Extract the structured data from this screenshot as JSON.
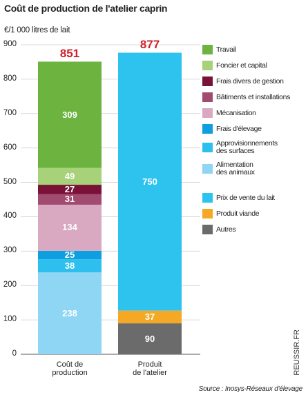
{
  "chart_data": {
    "type": "stacked-bar",
    "title": "Coût de production de l'atelier caprin",
    "subtitle": "€/1 000 litres de lait",
    "categories": [
      "Coût de\nproduction",
      "Produit\nde l'atelier"
    ],
    "series": [
      {
        "name": "Alimentation\ndes animaux",
        "color": "#8fd5f4",
        "values": [
          238,
          null
        ]
      },
      {
        "name": "Approvisionnements\ndes surfaces",
        "color": "#2dc0ee",
        "values": [
          38,
          null
        ]
      },
      {
        "name": "Frais d'élevage",
        "color": "#0d9fdf",
        "values": [
          25,
          null
        ]
      },
      {
        "name": "Mécanisation",
        "color": "#d9a8c1",
        "values": [
          134,
          null
        ]
      },
      {
        "name": "Bâtiments et installations",
        "color": "#a24b70",
        "values": [
          31,
          null
        ]
      },
      {
        "name": "Frais divers de gestion",
        "color": "#7a1238",
        "values": [
          27,
          null
        ]
      },
      {
        "name": "Foncier et capital",
        "color": "#a7d27a",
        "values": [
          49,
          null
        ]
      },
      {
        "name": "Travail",
        "color": "#6cb33f",
        "values": [
          309,
          null
        ]
      },
      {
        "name": "Autres",
        "color": "#6b6b6b",
        "values": [
          null,
          90
        ]
      },
      {
        "name": "Produit viande",
        "color": "#f4a823",
        "values": [
          null,
          37
        ]
      },
      {
        "name": "Prix de vente du lait",
        "color": "#2ec3ef",
        "values": [
          null,
          750
        ]
      }
    ],
    "totals": [
      851,
      877
    ],
    "totals_color": "#d0202a",
    "ylim": [
      0,
      900
    ],
    "yticks": [
      0,
      100,
      200,
      300,
      400,
      500,
      600,
      700,
      800,
      900
    ],
    "grid": true,
    "source": "Source : Inosys-Réseaux d'élevage",
    "watermark": "REUSSIR.FR"
  }
}
